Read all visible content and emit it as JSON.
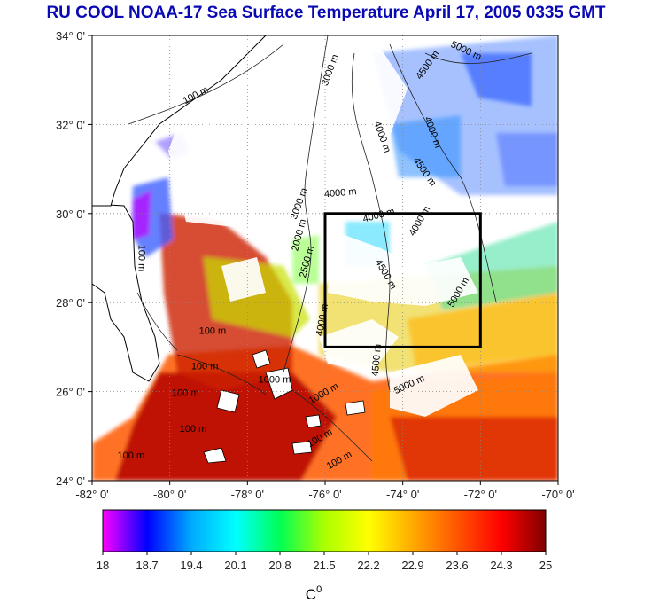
{
  "title": "RU COOL  NOAA-17 Sea Surface Temperature April 17, 2005 0335 GMT",
  "map": {
    "lon_range": [
      -82,
      -70
    ],
    "lat_range": [
      24,
      34
    ],
    "lon_ticks": [
      {
        "value": -82,
        "label": "-82° 0'"
      },
      {
        "value": -80,
        "label": "-80° 0'"
      },
      {
        "value": -78,
        "label": "-78° 0'"
      },
      {
        "value": -76,
        "label": "-76° 0'"
      },
      {
        "value": -74,
        "label": "-74° 0'"
      },
      {
        "value": -72,
        "label": "-72° 0'"
      },
      {
        "value": -70,
        "label": "-70° 0'"
      }
    ],
    "lat_ticks": [
      {
        "value": 24,
        "label": "24° 0'"
      },
      {
        "value": 26,
        "label": "26° 0'"
      },
      {
        "value": 28,
        "label": "28° 0'"
      },
      {
        "value": 30,
        "label": "30° 0'"
      },
      {
        "value": 32,
        "label": "32° 0'"
      },
      {
        "value": 34,
        "label": "34° 0'"
      }
    ],
    "study_box": {
      "lon_min": -76,
      "lon_max": -72,
      "lat_min": 27,
      "lat_max": 30
    },
    "contour_labels": [
      {
        "text": "100 m",
        "lon": -79.3,
        "lat": 32.6,
        "angle": -28
      },
      {
        "text": "3000 m",
        "lon": -75.8,
        "lat": 33.2,
        "angle": -70
      },
      {
        "text": "4500 m",
        "lon": -73.3,
        "lat": 33.3,
        "angle": -55
      },
      {
        "text": "5000 m",
        "lon": -72.4,
        "lat": 33.6,
        "angle": 25
      },
      {
        "text": "4000 m",
        "lon": -74.6,
        "lat": 31.7,
        "angle": 70
      },
      {
        "text": "4000 m",
        "lon": -73.3,
        "lat": 31.8,
        "angle": 70
      },
      {
        "text": "4500 m",
        "lon": -73.5,
        "lat": 30.9,
        "angle": 55
      },
      {
        "text": "4000 m",
        "lon": -75.6,
        "lat": 30.4,
        "angle": -5
      },
      {
        "text": "3000 m",
        "lon": -76.6,
        "lat": 30.2,
        "angle": -70
      },
      {
        "text": "4000 m",
        "lon": -74.6,
        "lat": 29.9,
        "angle": -15
      },
      {
        "text": "4000 m",
        "lon": -73.5,
        "lat": 29.8,
        "angle": -60
      },
      {
        "text": "2000 m",
        "lon": -76.6,
        "lat": 29.5,
        "angle": -75
      },
      {
        "text": "2500 m",
        "lon": -76.4,
        "lat": 28.9,
        "angle": -75
      },
      {
        "text": "4500 m",
        "lon": -74.5,
        "lat": 28.6,
        "angle": 60
      },
      {
        "text": "5000 m",
        "lon": -72.5,
        "lat": 28.2,
        "angle": -60
      },
      {
        "text": "4500 m",
        "lon": -74.6,
        "lat": 26.7,
        "angle": -85
      },
      {
        "text": "5000 m",
        "lon": -73.8,
        "lat": 26.1,
        "angle": -25
      },
      {
        "text": "100 m",
        "lon": -80.8,
        "lat": 29.0,
        "angle": 90
      },
      {
        "text": "100 m",
        "lon": -78.9,
        "lat": 27.3,
        "angle": 0
      },
      {
        "text": "100 m",
        "lon": -79.1,
        "lat": 26.5,
        "angle": 0
      },
      {
        "text": "100 m",
        "lon": -79.6,
        "lat": 25.9,
        "angle": 0
      },
      {
        "text": "100 m",
        "lon": -79.4,
        "lat": 25.1,
        "angle": 0
      },
      {
        "text": "100 m",
        "lon": -81.0,
        "lat": 24.5,
        "angle": 0
      },
      {
        "text": "1000 m",
        "lon": -77.3,
        "lat": 26.2,
        "angle": 0
      },
      {
        "text": "4000 m",
        "lon": -76.0,
        "lat": 27.6,
        "angle": -80
      },
      {
        "text": "1000 m",
        "lon": -76.0,
        "lat": 25.9,
        "angle": -30
      },
      {
        "text": "100 m",
        "lon": -76.1,
        "lat": 24.9,
        "angle": -30
      },
      {
        "text": "100 m",
        "lon": -75.6,
        "lat": 24.4,
        "angle": -30
      }
    ]
  },
  "colorbar": {
    "min": 18,
    "max": 25,
    "tick_labels": [
      "18",
      "18.7",
      "19.4",
      "20.1",
      "20.8",
      "21.5",
      "22.2",
      "22.9",
      "23.6",
      "24.3",
      "25"
    ],
    "unit": "C",
    "unit_superscript": "0",
    "colors": [
      "#ff00ff",
      "#0000ff",
      "#00aaff",
      "#00ffff",
      "#00ff55",
      "#aaff00",
      "#ffff00",
      "#ffaa00",
      "#ff5500",
      "#ff0000",
      "#800000"
    ]
  }
}
